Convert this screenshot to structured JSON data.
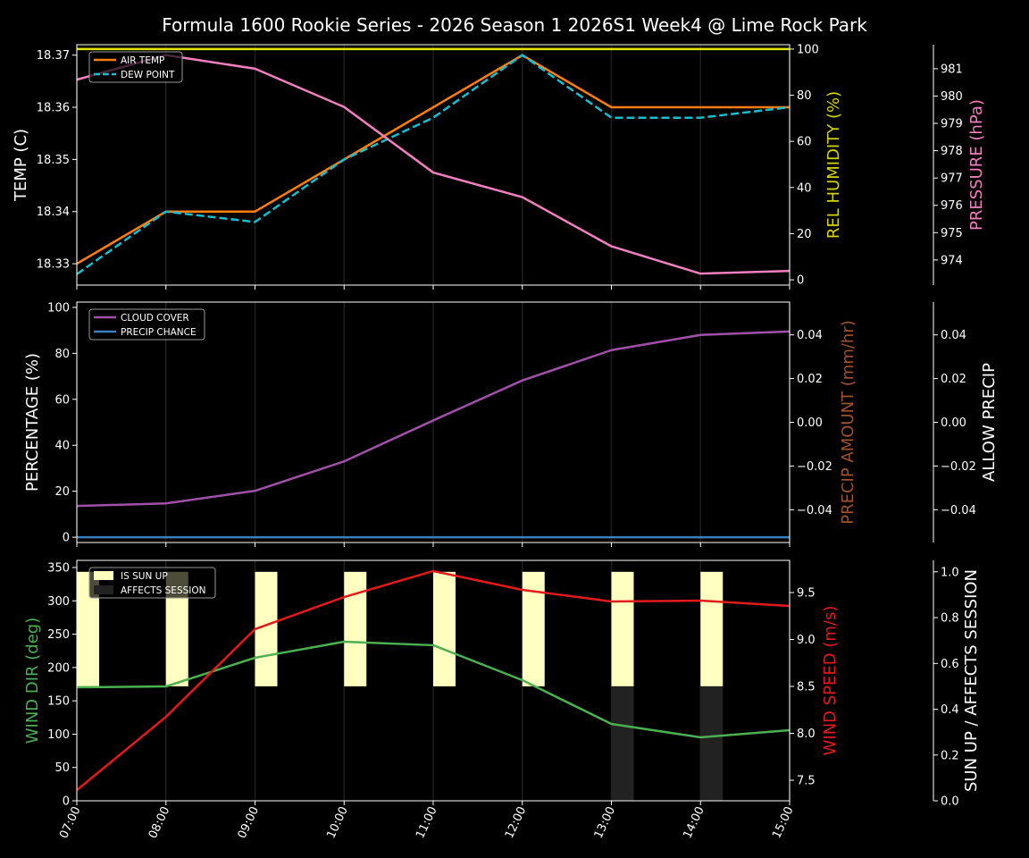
{
  "title": "Formula 1600 Rookie Series - 2026 Season 1 2026S1 Week4 @ Lime Rock Park",
  "x_labels": [
    "07:00",
    "08:00",
    "09:00",
    "10:00",
    "11:00",
    "12:00",
    "13:00",
    "14:00",
    "15:00"
  ],
  "chart_data": [
    {
      "type": "line",
      "x": [
        "07:00",
        "08:00",
        "09:00",
        "10:00",
        "11:00",
        "12:00",
        "13:00",
        "14:00",
        "15:00"
      ],
      "axes": {
        "left": {
          "label": "TEMP (C)",
          "color": "#ffffff",
          "ylim": [
            18.3259,
            18.372
          ],
          "ticks": [
            "18.33",
            "18.34",
            "18.35",
            "18.36",
            "18.37"
          ]
        },
        "right": {
          "label": "REL HUMIDITY (%)",
          "color": "#d4d400",
          "ylim": [
            -2.3,
            101.9
          ],
          "ticks": [
            "0",
            "20",
            "40",
            "60",
            "80",
            "100"
          ]
        },
        "right2": {
          "label": "PRESSURE (hPa)",
          "color": "#f27fbf",
          "ylim": [
            973.08,
            981.88
          ],
          "ticks": [
            "974",
            "975",
            "976",
            "977",
            "978",
            "979",
            "980",
            "981"
          ]
        }
      },
      "series": [
        {
          "name": "AIR TEMP",
          "axis": "left",
          "color": "#ff7f0e",
          "dash": false,
          "legend": true,
          "values": [
            18.33,
            18.34,
            18.34,
            18.35,
            18.36,
            18.37,
            18.36,
            18.36,
            18.36
          ]
        },
        {
          "name": "DEW POINT",
          "axis": "left",
          "color": "#17becf",
          "dash": true,
          "legend": true,
          "values": [
            18.328,
            18.34,
            18.338,
            18.35,
            18.358,
            18.37,
            18.358,
            18.358,
            18.36
          ]
        },
        {
          "axis": "right",
          "color": "#e6e600",
          "dash": false,
          "legend": false,
          "values": [
            100,
            100,
            100,
            100,
            100,
            100,
            100,
            100,
            100
          ]
        },
        {
          "axis": "right2",
          "color": "#f27fbf",
          "dash": false,
          "legend": false,
          "values": [
            980.6,
            981.5,
            981.0,
            979.6,
            977.2,
            976.3,
            974.5,
            973.5,
            973.6
          ]
        }
      ],
      "legend_placement": "top-left",
      "grid": "x"
    },
    {
      "type": "line",
      "x": [
        "07:00",
        "08:00",
        "09:00",
        "10:00",
        "11:00",
        "12:00",
        "13:00",
        "14:00",
        "15:00"
      ],
      "axes": {
        "left": {
          "label": "PERCENTAGE (%)",
          "color": "#ffffff",
          "ylim": [
            -2.3,
            102.3
          ],
          "ticks": [
            "0",
            "20",
            "40",
            "60",
            "80",
            "100"
          ]
        },
        "right": {
          "label": "PRECIP AMOUNT (mm/hr)",
          "color": "#a0522d",
          "ylim": [
            -0.055,
            0.055
          ],
          "ticks": [
            "−0.04",
            "−0.02",
            "0.00",
            "0.02",
            "0.04"
          ]
        },
        "right2": {
          "label": "ALLOW PRECIP",
          "color": "#ffffff",
          "ylim": [
            -0.055,
            0.055
          ],
          "ticks": [
            "−0.04",
            "−0.02",
            "0.00",
            "0.02",
            "0.04"
          ]
        }
      },
      "series": [
        {
          "name": "CLOUD COVER",
          "axis": "left",
          "color": "#a050a8",
          "dash": false,
          "legend": true,
          "values": [
            13.6,
            14.7,
            20.2,
            33,
            50.8,
            68.2,
            81.4,
            88,
            89.5
          ]
        },
        {
          "name": "PRECIP CHANCE",
          "axis": "left",
          "color": "#3a80c0",
          "dash": false,
          "legend": true,
          "values": [
            0,
            0,
            0,
            0,
            0,
            0,
            0,
            0,
            0
          ]
        }
      ],
      "legend_placement": "top-left",
      "grid": "x"
    },
    {
      "type": "line",
      "x": [
        "07:00",
        "08:00",
        "09:00",
        "10:00",
        "11:00",
        "12:00",
        "13:00",
        "14:00",
        "15:00"
      ],
      "axes": {
        "left": {
          "label": "WIND DIR (deg)",
          "color": "#4caf50",
          "ylim": [
            0,
            360.7
          ],
          "ticks": [
            "0",
            "50",
            "100",
            "150",
            "200",
            "250",
            "300",
            "350"
          ]
        },
        "right": {
          "label": "WIND SPEED (m/s)",
          "color": "#e31a1c",
          "ylim": [
            7.281,
            9.843
          ],
          "ticks": [
            "7.5",
            "8.0",
            "8.5",
            "9.0",
            "9.5"
          ]
        },
        "right2": {
          "label": "SUN UP / AFFECTS SESSION",
          "color": "#ffffff",
          "ylim": [
            0,
            1.05
          ],
          "ticks": [
            "0.0",
            "0.2",
            "0.4",
            "0.6",
            "0.8",
            "1.0"
          ]
        }
      },
      "bars": [
        {
          "name": "IS SUN UP",
          "axis": "right2",
          "color": "#ffffc0",
          "legend": true,
          "values": [
            1,
            1,
            1,
            1,
            1,
            1,
            1,
            1,
            0
          ]
        },
        {
          "name": "AFFECTS SESSION",
          "axis": "right2",
          "color": "#222222",
          "legend": true,
          "values": [
            0,
            0,
            0,
            0,
            0,
            0,
            1,
            1,
            0
          ]
        }
      ],
      "series": [
        {
          "axis": "left",
          "color": "#4caf50",
          "dash": false,
          "legend": false,
          "values": [
            170.3,
            171.6,
            214.6,
            238.7,
            233.4,
            181,
            115.3,
            95.2,
            106
          ]
        },
        {
          "axis": "right",
          "color": "#e31a1c",
          "dash": false,
          "legend": false,
          "values": [
            7.395,
            8.176,
            9.11,
            9.452,
            9.729,
            9.529,
            9.405,
            9.414,
            9.357
          ]
        }
      ],
      "legend_placement": "top-left",
      "grid": "x"
    }
  ]
}
